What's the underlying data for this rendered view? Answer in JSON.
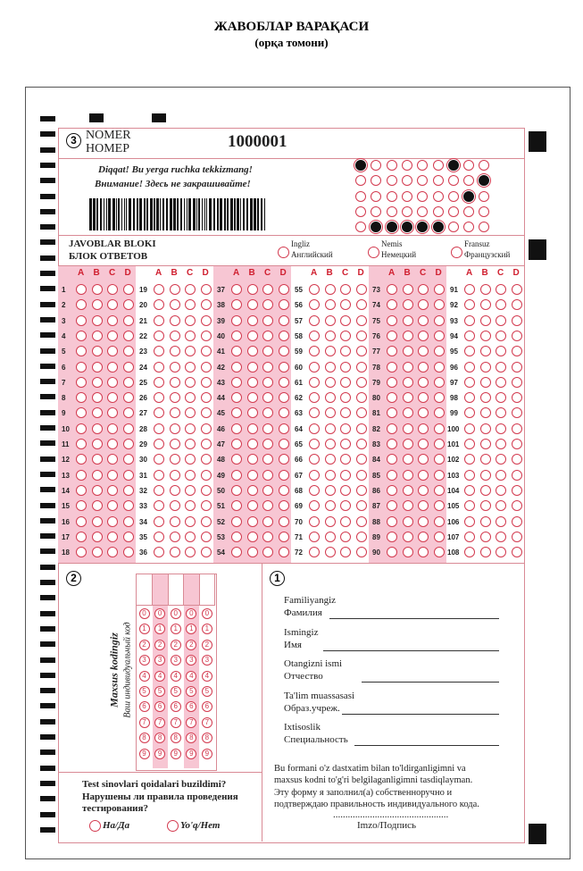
{
  "header": {
    "title": "ЖАВОБЛАР ВАРАҚАСИ",
    "subtitle": "(орқа томони)"
  },
  "number_block": {
    "section": "3",
    "label_uz": "NOMER",
    "label_ru": "НОМЕР",
    "value": "1000001"
  },
  "notice": {
    "line_uz": "Diqqat! Bu yerga ruchka tekkizmang!",
    "line_ru": "Внимание! Здесь не закрашивайте!"
  },
  "service_grid": {
    "filled": [
      [
        0,
        6
      ],
      [
        8
      ],
      [
        7
      ],
      [],
      [
        1,
        2,
        3,
        4,
        5
      ]
    ]
  },
  "answers_block": {
    "title_uz": "JAVOBLAR BLOKI",
    "title_ru": "БЛОК ОТВЕТОВ",
    "languages": [
      {
        "uz": "Ingliz",
        "ru": "Английский"
      },
      {
        "uz": "Nemis",
        "ru": "Немецкий"
      },
      {
        "uz": "Fransuz",
        "ru": "Французский"
      }
    ],
    "options": [
      "A",
      "B",
      "C",
      "D"
    ],
    "questions": 108,
    "columns": 6,
    "per_column": 18
  },
  "code_block": {
    "section": "2",
    "label_uz": "Maxsus kodingiz",
    "label_ru": "Ваш индивидуальный код",
    "digits": [
      "0",
      "1",
      "2",
      "3",
      "4",
      "5",
      "6",
      "7",
      "8",
      "9"
    ],
    "positions": 5
  },
  "rules": {
    "question_uz": "Test sinovlari qoidalari buzildimi?",
    "question_ru_1": "Нарушены ли правила проведения",
    "question_ru_2": "тестирования?",
    "yes": "Ha/Да",
    "no": "Yo'q/Нет"
  },
  "personal": {
    "section": "1",
    "fields": [
      {
        "uz": "Familiyangiz",
        "ru": "Фамилия"
      },
      {
        "uz": "Ismingiz",
        "ru": "Имя"
      },
      {
        "uz": "Otangizni ismi",
        "ru": "Отчество"
      },
      {
        "uz": "Ta'lim muassasasi",
        "ru": "Образ.учреж."
      },
      {
        "uz": "Ixtisoslik",
        "ru": "Специальность"
      }
    ],
    "confirm": [
      "Bu formani o'z dastxatim bilan to'ldirganligimni va",
      "maxsus kodni to'g'ri belgilaganligimni tasdiqlayman.",
      "Эту форму я заполнил(а) собственноручно и",
      "подтверждаю правильность индивидуального кода."
    ],
    "dots": "...............................................",
    "signature": "Imzo/Подпись"
  },
  "colors": {
    "accent": "#d02030",
    "pink": "#f7c6d3"
  }
}
